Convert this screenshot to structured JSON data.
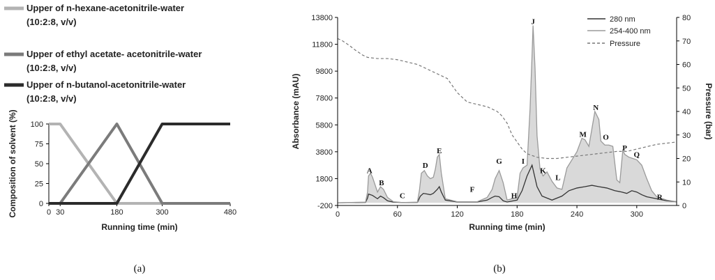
{
  "captions": {
    "a": "(a)",
    "b": "(b)"
  },
  "chart_data": [
    {
      "id": "a",
      "type": "line",
      "xlabel": "Running time (min)",
      "ylabel": "Composition of solvent (%)",
      "xlim": [
        0,
        480
      ],
      "ylim": [
        0,
        100
      ],
      "xticks": [
        0,
        30,
        180,
        300,
        480
      ],
      "yticks": [
        0,
        25,
        50,
        75,
        100
      ],
      "legend_position": "top-left",
      "series": [
        {
          "name": "Upper of n-hexane-acetonitrile-water",
          "name2": "(10:2:8, v/v)",
          "color": "#b3b3b3",
          "x": [
            0,
            30,
            180,
            480
          ],
          "y": [
            100,
            100,
            0,
            0
          ]
        },
        {
          "name": "Upper of ethyl acetate- acetonitrile-water",
          "name2": "(10:2:8, v/v)",
          "color": "#7b7b7b",
          "x": [
            0,
            30,
            180,
            300,
            480
          ],
          "y": [
            0,
            0,
            100,
            0,
            0
          ]
        },
        {
          "name": "Upper of n-butanol-acetonitrile-water",
          "name2": "(10:2:8, v/v)",
          "color": "#2b2b2b",
          "x": [
            0,
            180,
            300,
            480
          ],
          "y": [
            0,
            0,
            100,
            100
          ]
        }
      ]
    },
    {
      "id": "b",
      "type": "line",
      "xlabel": "Running time (min)",
      "ylabel": "Absorbance (mAU)",
      "y2label": "Pressure (bar)",
      "xlim": [
        0,
        340
      ],
      "ylim": [
        -200,
        13800
      ],
      "y2lim": [
        0,
        80
      ],
      "xticks": [
        0,
        60,
        120,
        180,
        240,
        300
      ],
      "yticks": [
        -200,
        1800,
        3800,
        5800,
        7800,
        9800,
        11800,
        13800
      ],
      "y2ticks": [
        0,
        10,
        20,
        30,
        40,
        50,
        60,
        70,
        80
      ],
      "legend_position": "top-right",
      "series": [
        {
          "name": "280 nm",
          "color": "#333333",
          "style": "solid",
          "x": [
            0,
            28,
            30,
            31,
            35,
            40,
            43,
            46,
            50,
            56,
            65,
            80,
            83,
            86,
            90,
            93,
            96,
            100,
            102,
            104,
            108,
            120,
            140,
            150,
            155,
            158,
            162,
            166,
            170,
            180,
            185,
            190,
            195,
            200,
            205,
            215,
            225,
            232,
            240,
            248,
            255,
            262,
            270,
            278,
            285,
            290,
            295,
            300,
            305,
            310,
            320,
            330,
            340
          ],
          "y": [
            0,
            30,
            350,
            650,
            550,
            300,
            500,
            380,
            150,
            50,
            20,
            30,
            500,
            700,
            650,
            600,
            700,
            1000,
            1200,
            800,
            200,
            60,
            60,
            200,
            400,
            500,
            450,
            150,
            60,
            200,
            900,
            2000,
            2800,
            1200,
            500,
            200,
            500,
            900,
            1100,
            1200,
            1300,
            1200,
            1100,
            900,
            800,
            700,
            900,
            800,
            600,
            450,
            300,
            150,
            80
          ]
        },
        {
          "name": "254-400 nm",
          "color": "#9a9a9a",
          "style": "solid",
          "fill": "#d9d9d9",
          "x": [
            0,
            28,
            30,
            31,
            33,
            35,
            40,
            43,
            46,
            50,
            56,
            65,
            80,
            82,
            84,
            87,
            90,
            93,
            96,
            98,
            100,
            102,
            104,
            108,
            120,
            140,
            150,
            155,
            158,
            162,
            166,
            170,
            180,
            183,
            186,
            190,
            193,
            195,
            196,
            198,
            200,
            203,
            206,
            210,
            215,
            220,
            225,
            230,
            235,
            240,
            245,
            248,
            252,
            255,
            258,
            262,
            264,
            268,
            272,
            276,
            280,
            283,
            286,
            288,
            292,
            296,
            300,
            305,
            310,
            315,
            320,
            330,
            340
          ],
          "y": [
            0,
            50,
            800,
            2000,
            2200,
            1900,
            800,
            1200,
            1000,
            400,
            80,
            20,
            50,
            900,
            2200,
            2400,
            2000,
            1800,
            1900,
            2500,
            3400,
            3600,
            2200,
            300,
            80,
            80,
            400,
            1000,
            1800,
            2400,
            1500,
            200,
            400,
            2200,
            2600,
            2800,
            7000,
            11000,
            13200,
            10000,
            5000,
            2500,
            2000,
            2300,
            1600,
            1100,
            1000,
            2600,
            3200,
            3800,
            4800,
            4700,
            4200,
            5500,
            6800,
            6200,
            4600,
            4300,
            4300,
            4200,
            1700,
            1500,
            3900,
            3600,
            3400,
            3300,
            3200,
            2800,
            1800,
            900,
            450,
            200,
            80
          ]
        },
        {
          "name": "Pressure",
          "color": "#777777",
          "style": "dashed",
          "axis": "right",
          "x": [
            0,
            5,
            12,
            18,
            25,
            30,
            40,
            50,
            60,
            70,
            80,
            90,
            100,
            110,
            120,
            130,
            140,
            150,
            160,
            165,
            170,
            175,
            180,
            185,
            190,
            200,
            210,
            220,
            230,
            240,
            250,
            260,
            270,
            280,
            290,
            300,
            310,
            320,
            330,
            340
          ],
          "y": [
            71,
            70,
            68,
            66,
            64,
            63,
            62.5,
            62.5,
            62,
            61,
            60,
            58,
            56,
            54,
            48,
            44,
            43,
            42,
            40,
            38,
            35,
            30,
            27,
            24,
            22,
            20.5,
            20,
            20,
            20.5,
            21,
            21.5,
            22,
            22.5,
            23,
            23,
            24,
            25,
            26,
            26.5,
            27
          ]
        }
      ],
      "peak_labels": [
        {
          "text": "A",
          "x": 32,
          "y": 2200
        },
        {
          "text": "B",
          "x": 44,
          "y": 1300
        },
        {
          "text": "C",
          "x": 65,
          "y": 350
        },
        {
          "text": "D",
          "x": 88,
          "y": 2600
        },
        {
          "text": "E",
          "x": 102,
          "y": 3700
        },
        {
          "text": "F",
          "x": 135,
          "y": 800
        },
        {
          "text": "G",
          "x": 162,
          "y": 2900
        },
        {
          "text": "H",
          "x": 177,
          "y": 350
        },
        {
          "text": "I",
          "x": 186,
          "y": 2900
        },
        {
          "text": "J",
          "x": 196,
          "y": 13300
        },
        {
          "text": "K",
          "x": 206,
          "y": 2200
        },
        {
          "text": "L",
          "x": 221,
          "y": 1700
        },
        {
          "text": "M",
          "x": 246,
          "y": 4900
        },
        {
          "text": "N",
          "x": 259,
          "y": 6900
        },
        {
          "text": "O",
          "x": 269,
          "y": 4700
        },
        {
          "text": "P",
          "x": 288,
          "y": 3900
        },
        {
          "text": "Q",
          "x": 300,
          "y": 3400
        },
        {
          "text": "R",
          "x": 323,
          "y": 250
        }
      ]
    }
  ]
}
